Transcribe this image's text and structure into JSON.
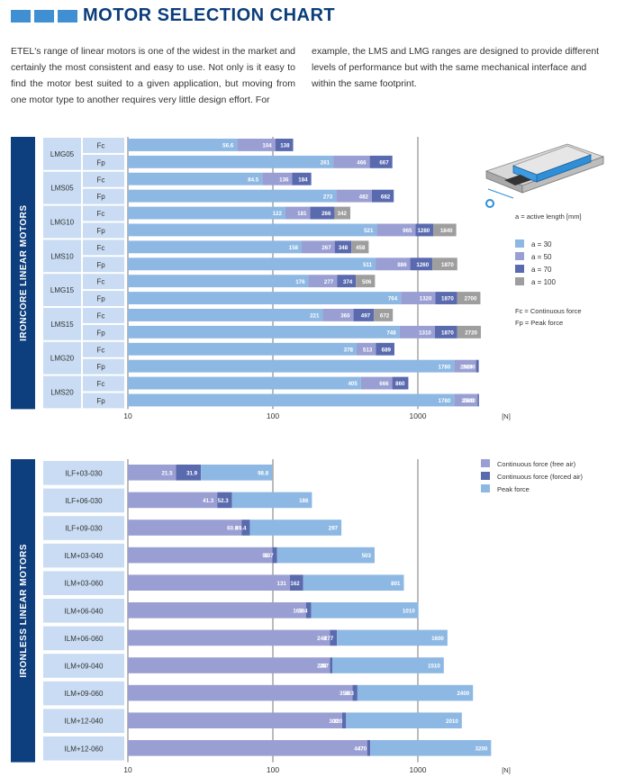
{
  "header": {
    "title": "MOTOR SELECTION CHART",
    "intro_left": "ETEL's range of linear motors is one of the widest in the market and certainly the most consistent and easy to use. Not only is it easy to find the motor best suited to a given application, but moving from one motor type to another requires very little design effort. For",
    "intro_right": "example, the LMS and LMG ranges are designed to provide different levels of performance but with the same mechanical interface and within the same footprint."
  },
  "colors": {
    "accent": "#3f8fd2",
    "title": "#0b3d7a",
    "section_bar": "#0d3f7e",
    "row_label_bg": "#c9dcf3",
    "a30": "#8db8e3",
    "a50": "#9a9fd3",
    "a70": "#5a6aaf",
    "a100": "#9e9e9e",
    "irl_free": "#9a9fd3",
    "irl_forced": "#5a6aaf",
    "irl_peak": "#8db8e3"
  },
  "chart_data": [
    {
      "type": "bar",
      "orientation": "horizontal",
      "stacked_cumulative": true,
      "xscale": "log",
      "xlim": [
        10,
        3000
      ],
      "xticks": [
        "10",
        "100",
        "1000"
      ],
      "xunit": "[N]",
      "section_label": "IRONCORE LINEAR MOTORS",
      "legend": {
        "caption": "a = active length [mm]",
        "entries": [
          {
            "label": "a = 30",
            "color": "#8db8e3"
          },
          {
            "label": "a = 50",
            "color": "#9a9fd3"
          },
          {
            "label": "a = 70",
            "color": "#5a6aaf"
          },
          {
            "label": "a = 100",
            "color": "#9e9e9e"
          }
        ],
        "notes": [
          "Fc = Continuous force",
          "Fp = Peak force"
        ]
      },
      "groups": [
        {
          "motor": "LMG05",
          "rows": [
            {
              "kind": "Fc",
              "labels": [
                "56.6",
                "104",
                "138"
              ],
              "values": [
                56.6,
                104,
                138
              ]
            },
            {
              "kind": "Fp",
              "labels": [
                "261",
                "466",
                "667"
              ],
              "values": [
                261,
                466,
                667
              ]
            }
          ]
        },
        {
          "motor": "LMS05",
          "rows": [
            {
              "kind": "Fc",
              "labels": [
                "84.5",
                "136",
                "184"
              ],
              "values": [
                84.5,
                136,
                184
              ]
            },
            {
              "kind": "Fp",
              "labels": [
                "273",
                "482",
                "682"
              ],
              "values": [
                273,
                482,
                682
              ]
            }
          ]
        },
        {
          "motor": "LMG10",
          "rows": [
            {
              "kind": "Fc",
              "labels": [
                "122",
                "181",
                "266",
                "342"
              ],
              "values": [
                122,
                181,
                266,
                342
              ]
            },
            {
              "kind": "Fp",
              "labels": [
                "521",
                "965",
                "1280",
                "1840"
              ],
              "values": [
                521,
                965,
                1280,
                1840
              ]
            }
          ]
        },
        {
          "motor": "LMS10",
          "rows": [
            {
              "kind": "Fc",
              "labels": [
                "158",
                "267",
                "348",
                "458"
              ],
              "values": [
                158,
                267,
                348,
                458
              ]
            },
            {
              "kind": "Fp",
              "labels": [
                "511",
                "886",
                "1260",
                "1870"
              ],
              "values": [
                511,
                886,
                1260,
                1870
              ]
            }
          ]
        },
        {
          "motor": "LMG15",
          "rows": [
            {
              "kind": "Fc",
              "labels": [
                "176",
                "277",
                "374",
                "506"
              ],
              "values": [
                176,
                277,
                374,
                506
              ]
            },
            {
              "kind": "Fp",
              "labels": [
                "764",
                "1320",
                "1870",
                "2700"
              ],
              "values": [
                764,
                1320,
                1870,
                2700
              ]
            }
          ]
        },
        {
          "motor": "LMS15",
          "rows": [
            {
              "kind": "Fc",
              "labels": [
                "221",
                "360",
                "497",
                "672"
              ],
              "values": [
                221,
                360,
                497,
                672
              ]
            },
            {
              "kind": "Fp",
              "labels": [
                "748",
                "1310",
                "1870",
                "2720"
              ],
              "values": [
                748,
                1310,
                1870,
                2720
              ]
            }
          ]
        },
        {
          "motor": "LMG20",
          "rows": [
            {
              "kind": "Fc",
              "labels": [
                "378",
                "513",
                "689"
              ],
              "values": [
                378,
                513,
                689
              ]
            },
            {
              "kind": "Fp",
              "labels": [
                "1780",
                "2520",
                "2630"
              ],
              "values": [
                1780,
                2520,
                2630
              ]
            }
          ]
        },
        {
          "motor": "LMS20",
          "rows": [
            {
              "kind": "Fc",
              "labels": [
                "405",
                "666",
                "860"
              ],
              "values": [
                405,
                666,
                860
              ]
            },
            {
              "kind": "Fp",
              "labels": [
                "1780",
                "2580",
                "2640"
              ],
              "values": [
                1780,
                2580,
                2640
              ]
            }
          ]
        }
      ]
    },
    {
      "type": "bar",
      "orientation": "horizontal",
      "stacked_cumulative": true,
      "xscale": "log",
      "xlim": [
        10,
        3000
      ],
      "xticks": [
        "10",
        "100",
        "1000"
      ],
      "xunit": "[N]",
      "section_label": "IRONLESS LINEAR MOTORS",
      "legend": {
        "entries": [
          {
            "label": "Continuous force (free air)",
            "color": "#9a9fd3"
          },
          {
            "label": "Continuous force (forced air)",
            "color": "#5a6aaf"
          },
          {
            "label": "Peak force",
            "color": "#8db8e3"
          }
        ]
      },
      "rows": [
        {
          "motor": "ILF+03-030",
          "labels": [
            "21.5",
            "31.9",
            "98.8"
          ],
          "values": [
            21.5,
            31.9,
            98.8
          ]
        },
        {
          "motor": "ILF+06-030",
          "labels": [
            "41.3",
            "52.3",
            "186"
          ],
          "values": [
            41.3,
            52.3,
            186
          ]
        },
        {
          "motor": "ILF+09-030",
          "labels": [
            "60.8",
            "69.4",
            "297"
          ],
          "values": [
            60.8,
            69.4,
            297
          ]
        },
        {
          "motor": "ILM+03-040",
          "labels": [
            "99",
            "107",
            "503"
          ],
          "values": [
            99,
            107,
            503
          ]
        },
        {
          "motor": "ILM+03-060",
          "labels": [
            "131",
            "162",
            "801"
          ],
          "values": [
            131,
            162,
            801
          ]
        },
        {
          "motor": "ILM+06-040",
          "labels": [
            "169",
            "184",
            "1010"
          ],
          "values": [
            169,
            184,
            1010
          ]
        },
        {
          "motor": "ILM+06-060",
          "labels": [
            "248",
            "277",
            "1600"
          ],
          "values": [
            248,
            277,
            1600
          ]
        },
        {
          "motor": "ILM+09-040",
          "labels": [
            "248",
            "257",
            "1510"
          ],
          "values": [
            248,
            257,
            1510
          ]
        },
        {
          "motor": "ILM+09-060",
          "labels": [
            "354",
            "383",
            "2400"
          ],
          "values": [
            354,
            383,
            2400
          ]
        },
        {
          "motor": "ILM+12-040",
          "labels": [
            "300",
            "320",
            "2010"
          ],
          "values": [
            300,
            320,
            2010
          ]
        },
        {
          "motor": "ILM+12-060",
          "labels": [
            "447",
            "470",
            "3200"
          ],
          "values": [
            447,
            470,
            3200
          ]
        }
      ]
    }
  ]
}
